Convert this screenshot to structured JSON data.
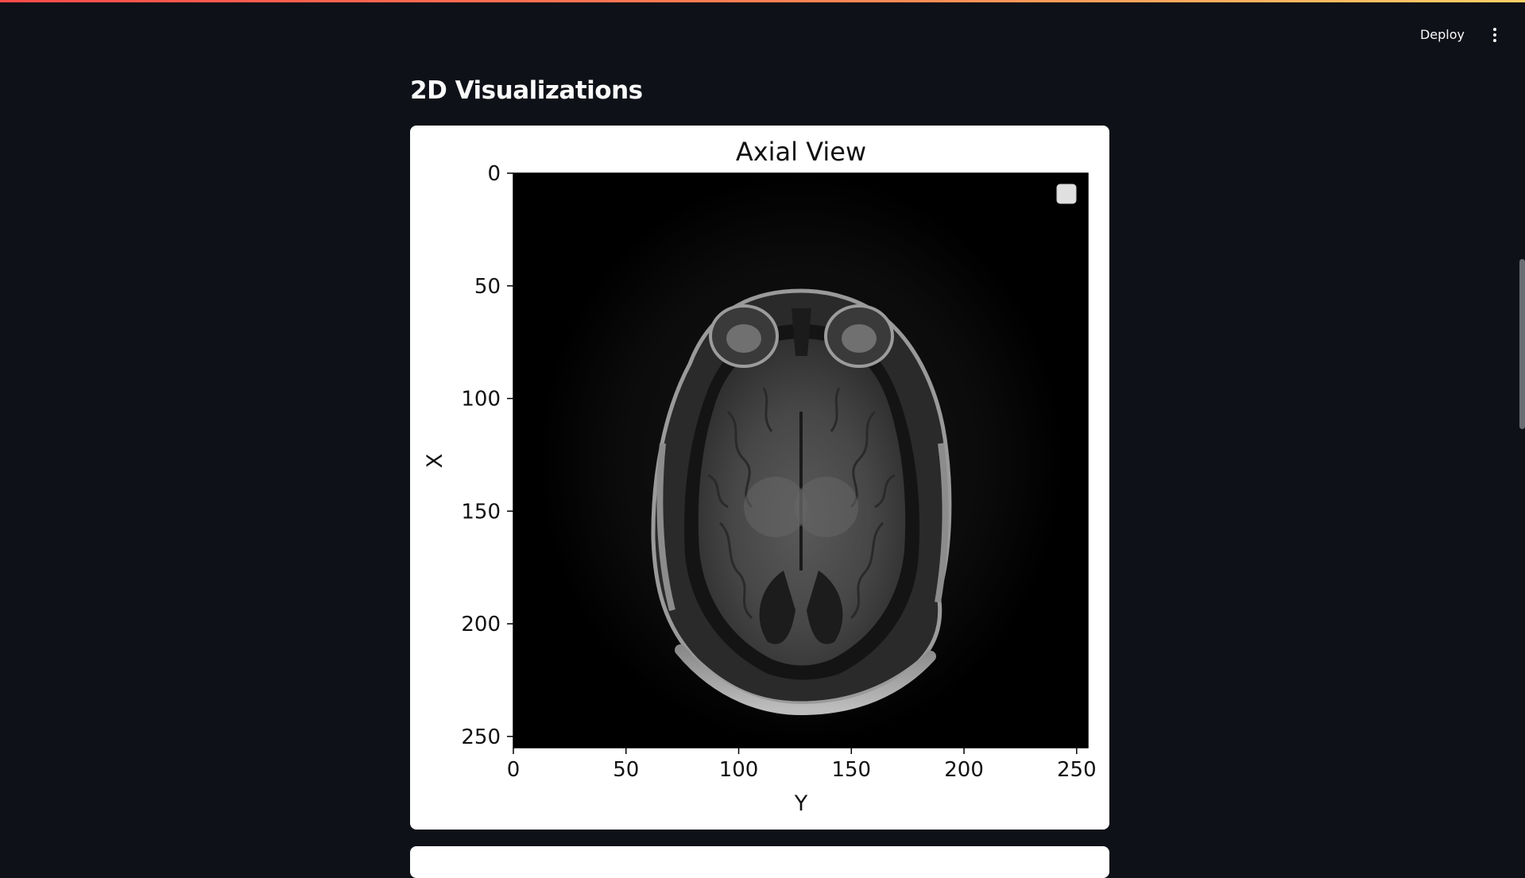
{
  "toolbar": {
    "deploy_label": "Deploy",
    "menu_icon": "more-vertical-icon"
  },
  "section": {
    "title": "2D Visualizations"
  },
  "chart_data": {
    "type": "image",
    "title": "Axial View",
    "xlabel": "Y",
    "ylabel": "X",
    "xlim": [
      0,
      255
    ],
    "ylim": [
      255,
      0
    ],
    "xticks": [
      "0",
      "50",
      "100",
      "150",
      "200",
      "250"
    ],
    "yticks": [
      "0",
      "50",
      "100",
      "150",
      "200",
      "250"
    ],
    "legend": "top-right",
    "image_content": "axial MRI brain slice, grayscale"
  }
}
